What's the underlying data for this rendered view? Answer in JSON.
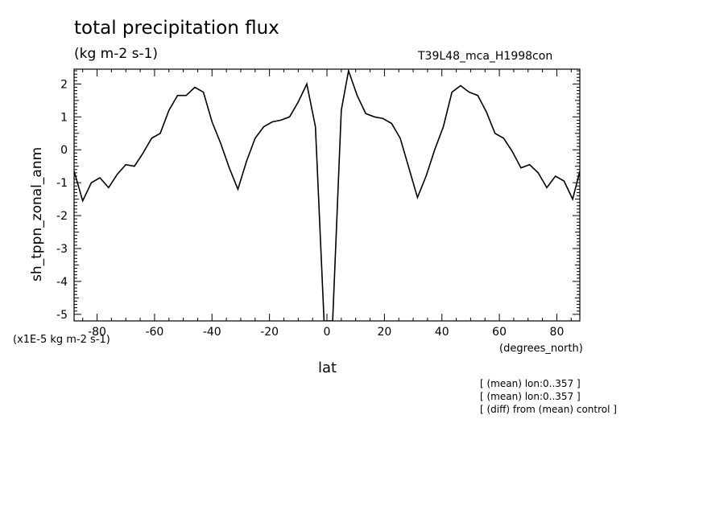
{
  "chart_data": {
    "type": "line",
    "title": "total precipitation flux",
    "units": "(kg m-2 s-1)",
    "run_label": "T39L48_mca_H1998con",
    "ylabel": "sh_tppn_zonal_anm",
    "xlabel": "lat",
    "x_units": "(degrees_north)",
    "scale_note": "(x1E-5 kg m-2 s-1)",
    "notes": [
      "[ (mean) lon:0..357 ]",
      "[ (mean) lon:0..357 ]",
      "[ (diff) from (mean) control ]"
    ],
    "xlim": [
      -88,
      88
    ],
    "ylim": [
      -5.2,
      2.45
    ],
    "xticks": [
      -80,
      -60,
      -40,
      -20,
      0,
      20,
      40,
      60,
      80
    ],
    "yticks": [
      -5,
      -4,
      -3,
      -2,
      -1,
      0,
      1,
      2
    ],
    "grid": false,
    "series": [
      {
        "x": [
          -88,
          -85,
          -82,
          -79,
          -76,
          -73,
          -70,
          -67,
          -64,
          -61,
          -58,
          -55,
          -52,
          -49,
          -46,
          -43,
          -40,
          -37,
          -34,
          -31,
          -28,
          -25,
          -22,
          -19,
          -16,
          -13,
          -10,
          -7,
          -4,
          -1,
          2,
          5,
          7.5,
          10.5,
          13.5,
          16.5,
          19.5,
          22.5,
          25.5,
          28.5,
          31.5,
          34.5,
          37.5,
          40.5,
          43.5,
          46.5,
          49.5,
          52.5,
          55.5,
          58.5,
          61.5,
          64.5,
          67.5,
          70.5,
          73.5,
          76.5,
          79.5,
          82.5,
          85.5,
          88
        ],
        "y": [
          -0.65,
          -1.55,
          -1.0,
          -0.85,
          -1.15,
          -0.75,
          -0.45,
          -0.5,
          -0.1,
          0.35,
          0.5,
          1.2,
          1.65,
          1.65,
          1.9,
          1.75,
          0.85,
          0.2,
          -0.55,
          -1.2,
          -0.35,
          0.35,
          0.7,
          0.85,
          0.9,
          1.0,
          1.45,
          2.0,
          0.7,
          -5.2,
          -5.2,
          1.2,
          2.4,
          1.65,
          1.1,
          1.0,
          0.95,
          0.8,
          0.35,
          -0.55,
          -1.45,
          -0.8,
          0.0,
          0.7,
          1.75,
          1.95,
          1.75,
          1.65,
          1.15,
          0.5,
          0.35,
          -0.05,
          -0.55,
          -0.45,
          -0.7,
          -1.15,
          -0.8,
          -0.95,
          -1.5,
          -0.65
        ]
      }
    ]
  }
}
